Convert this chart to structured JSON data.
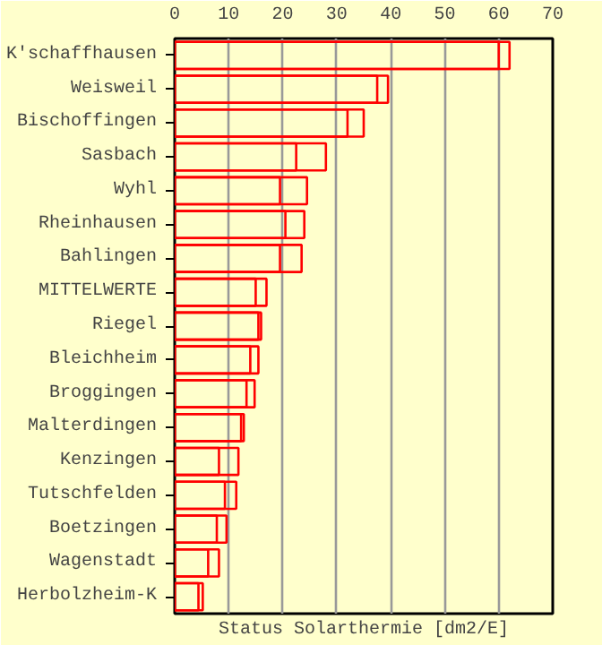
{
  "chart_data": {
    "type": "bar",
    "orientation": "horizontal",
    "xlabel": "Status Solarthermie [dm2/E]",
    "categories": [
      "K'schaffhausen",
      "Weisweil",
      "Bischoffingen",
      "Sasbach",
      "Wyhl",
      "Rheinhausen",
      "Bahlingen",
      "MITTELWERTE",
      "Riegel",
      "Bleichheim",
      "Broggingen",
      "Malterdingen",
      "Kenzingen",
      "Tutschfelden",
      "Boetzingen",
      "Wagenstadt",
      "Herbolzheim-K"
    ],
    "series": [
      {
        "color": "#ff0000",
        "values": [
          62,
          37.5,
          32,
          28,
          19.5,
          20.5,
          19.5,
          17,
          15.5,
          14,
          13.3,
          12.8,
          8.2,
          11.4,
          7.8,
          8.2,
          4.4
        ]
      },
      {
        "color": "#ff0000",
        "values": [
          60,
          39.5,
          35,
          22.5,
          24.5,
          24,
          23.5,
          15,
          16,
          15.5,
          14.8,
          12.3,
          11.8,
          9.3,
          9.6,
          6.2,
          5.2
        ]
      }
    ],
    "xlim": [
      0,
      70
    ],
    "xticks": [
      0,
      10,
      20,
      30,
      40,
      50,
      60,
      70
    ],
    "grid": "x"
  }
}
